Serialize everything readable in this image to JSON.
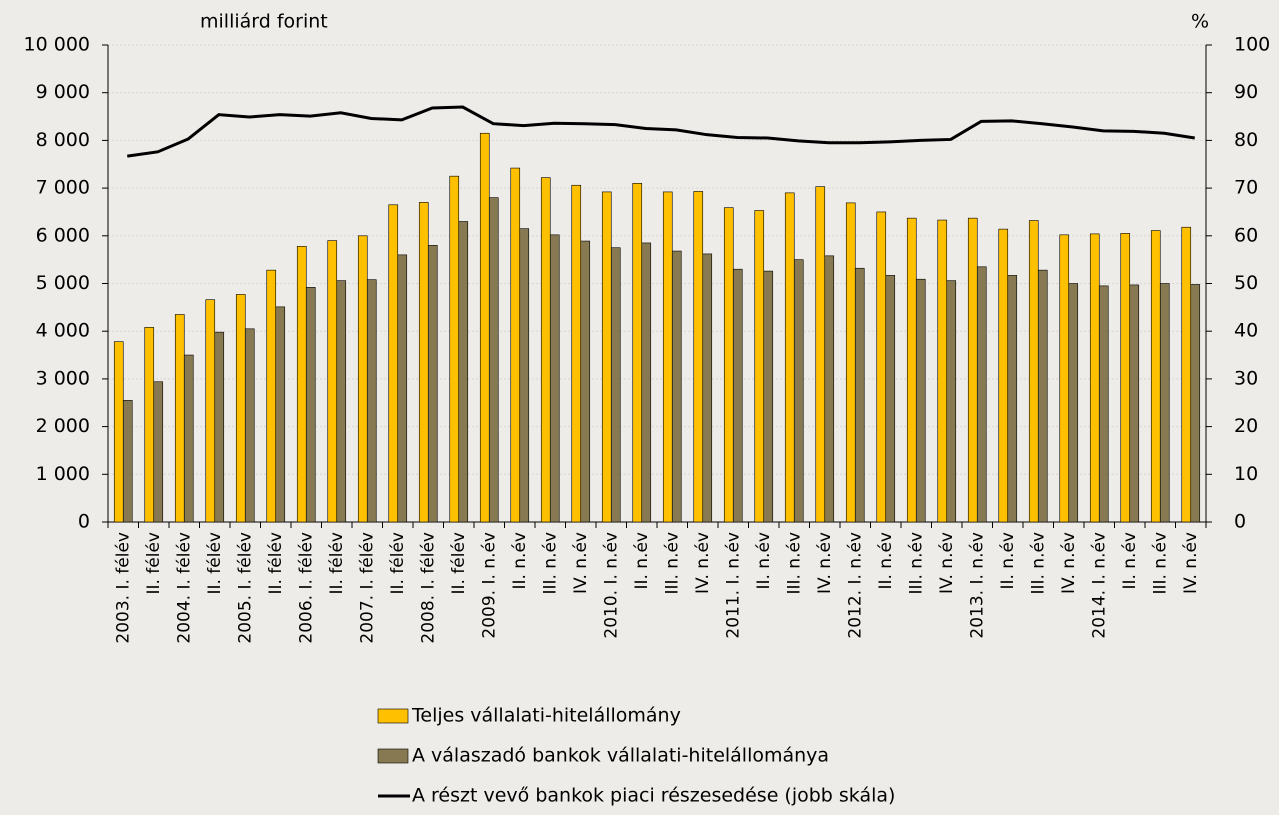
{
  "chart_data": {
    "type": "bar-line",
    "y_label": "milliárd forint",
    "y2_label": "%",
    "categories": [
      "2003. I. félév",
      "II. félév",
      "2004. I. félév",
      "II. félév",
      "2005. I. félév",
      "II. félév",
      "2006. I. félév",
      "II. félév",
      "2007. I. félév",
      "II. félév",
      "2008. I. félév",
      "II. félév",
      "2009. I. n.év",
      "II. n.év",
      "III. n.év",
      "IV. n.év",
      "2010. I. n.év",
      "II. n.év",
      "III. n.év",
      "IV. n.év",
      "2011. I. n.év",
      "II. n.év",
      "III. n.év",
      "IV. n.év",
      "2012. I. n.év",
      "II. n.év",
      "III. n.év",
      "IV. n.év",
      "2013. I. n.év",
      "II. n.év",
      "III. n.év",
      "IV. n.év",
      "2014. I. n.év",
      "II. n.év",
      "III. n.év",
      "IV. n.év"
    ],
    "series": [
      {
        "name": "Teljes vállalati-hitelállomány",
        "color": "#ffc000",
        "kind": "bar",
        "values": [
          3780,
          4080,
          4350,
          4660,
          4770,
          5280,
          5780,
          5900,
          6000,
          6650,
          6700,
          7250,
          8150,
          7420,
          7220,
          7060,
          6920,
          7100,
          6920,
          6930,
          6590,
          6530,
          6900,
          7030,
          6690,
          6500,
          6370,
          6330,
          6370,
          6140,
          6320,
          6020,
          6040,
          6050,
          6110,
          6180
        ]
      },
      {
        "name": "A válaszadó bankok vállalati-hitelállománya",
        "color": "#877a53",
        "kind": "bar",
        "values": [
          2550,
          2940,
          3500,
          3980,
          4050,
          4510,
          4920,
          5060,
          5080,
          5600,
          5800,
          6300,
          6800,
          6150,
          6020,
          5890,
          5750,
          5850,
          5680,
          5620,
          5300,
          5260,
          5500,
          5580,
          5320,
          5170,
          5090,
          5060,
          5350,
          5170,
          5280,
          5000,
          4950,
          4970,
          5000,
          4980
        ]
      },
      {
        "name": "A részt vevő bankok piaci részesedése (jobb skála)",
        "color": "#000000",
        "kind": "line",
        "axis": "y2",
        "values": [
          76.7,
          77.6,
          80.3,
          85.4,
          84.9,
          85.4,
          85.1,
          85.8,
          84.6,
          84.3,
          86.8,
          87.0,
          83.5,
          83.1,
          83.6,
          83.5,
          83.3,
          82.5,
          82.2,
          81.2,
          80.6,
          80.5,
          79.9,
          79.5,
          79.5,
          79.7,
          80.0,
          80.2,
          84.0,
          84.1,
          83.5,
          82.8,
          82.0,
          81.9,
          81.5,
          80.5
        ]
      }
    ],
    "ylim": [
      0,
      10000
    ],
    "yticks": [
      0,
      {
        "value": 1000,
        "label": "1 000"
      },
      {
        "value": 2000,
        "label": "2 000"
      },
      {
        "value": 3000,
        "label": "3 000"
      },
      {
        "value": 4000,
        "label": "4 000"
      },
      {
        "value": 5000,
        "label": "5 000"
      },
      {
        "value": 6000,
        "label": "6 000"
      },
      {
        "value": 7000,
        "label": "7 000"
      },
      {
        "value": 8000,
        "label": "8 000"
      },
      {
        "value": 9000,
        "label": "9 000"
      },
      {
        "value": 10000,
        "label": "10 000"
      }
    ],
    "y2lim": [
      0,
      100
    ],
    "y2ticks": [
      0,
      10,
      20,
      30,
      40,
      50,
      60,
      70,
      80,
      90,
      100
    ]
  }
}
